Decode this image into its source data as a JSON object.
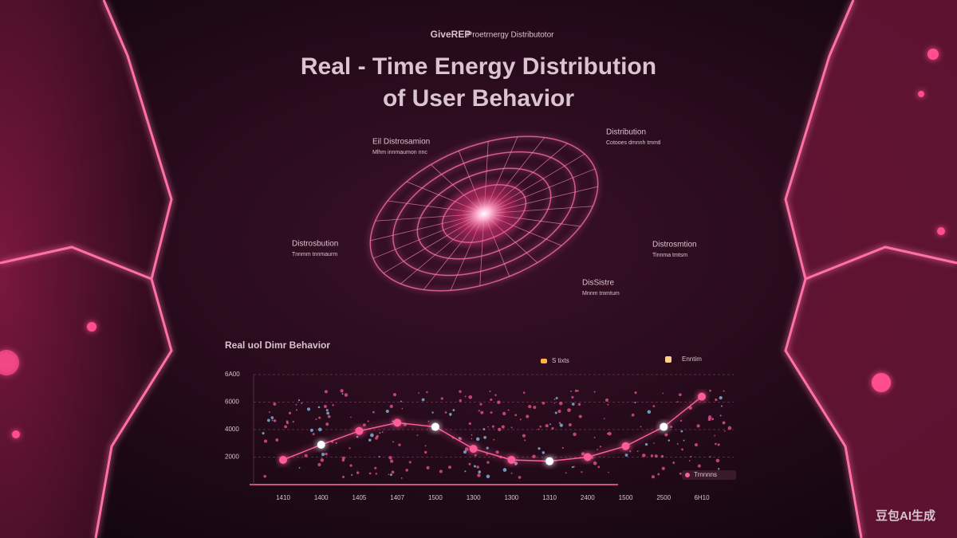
{
  "brand": "GiveREP",
  "brand_sub": "Proetrnergy Distributotor",
  "watermark": "豆包AI生成",
  "annotations": [
    {
      "title": "Eil Distrosamion",
      "note": "Mlhm innmaumon nnc"
    },
    {
      "title": "Distribution",
      "note": "Cotooes dmnnh tmmtl"
    },
    {
      "title": "Distrosbution",
      "note": "Tnnmm tnnmaurm"
    },
    {
      "title": "Distrosmtion",
      "note": "Tinnma tmtsm"
    },
    {
      "title": "DisSistre",
      "note": "Mnnm tmmtum"
    }
  ],
  "chart_data": {
    "type": "line",
    "title": "Real - Time Energy Distribution of User Behavior",
    "subtitle": "Real uol Dimr Behavior",
    "categories": [
      "1410",
      "1400",
      "1405",
      "1407",
      "1500",
      "1300",
      "1300",
      "1310",
      "2400",
      "1500",
      "2500",
      "6H10"
    ],
    "series": [
      {
        "name": "S tixts",
        "color": "#ff5c9a",
        "values": [
          1800,
          2900,
          3900,
          4500,
          4200,
          2600,
          1800,
          1700,
          2000,
          2800,
          4200,
          6400
        ]
      }
    ],
    "legend_extra": "Enntim",
    "footnote": "Trnnnns",
    "ylim": [
      0,
      8000
    ],
    "yticks": [
      2000,
      4000,
      6000,
      {
        "value": 8000,
        "label": "6A00"
      }
    ],
    "grid": true
  }
}
